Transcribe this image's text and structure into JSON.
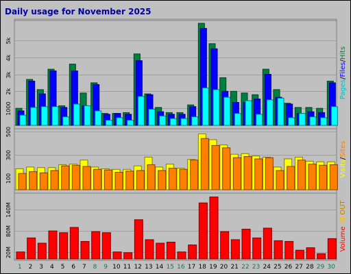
{
  "chart_data": {
    "type": "bar",
    "title": "Daily usage for November 2025",
    "categories": [
      "1",
      "2",
      "3",
      "4",
      "5",
      "6",
      "7",
      "8",
      "9",
      "10",
      "11",
      "12",
      "13",
      "14",
      "15",
      "16",
      "17",
      "18",
      "19",
      "20",
      "21",
      "22",
      "23",
      "24",
      "25",
      "26",
      "27",
      "28",
      "29",
      "30"
    ],
    "weekend_days": [
      "1",
      "8",
      "9",
      "15",
      "16",
      "22",
      "23",
      "29",
      "30"
    ],
    "colors": {
      "weekday_label": "#000000",
      "weekend_label": "#00805c",
      "pages": "#00ffff",
      "files": "#0000ff",
      "hits": "#008040",
      "visits": "#ffff00",
      "sites": "#ff8000",
      "kbytes": "#ff0000",
      "separator": "#000000"
    },
    "panels": [
      {
        "id": "hits-files-pages",
        "ylim": [
          0,
          6000
        ],
        "yticks": [
          "1000",
          "2k",
          "3k",
          "4k",
          "5k"
        ],
        "ytick_values": [
          1000,
          2000,
          3000,
          4000,
          5000
        ],
        "legend": [
          {
            "label": "Pages",
            "color": "#00c0c0"
          },
          {
            "label": "Files",
            "color": "#0000ff"
          },
          {
            "label": "Hits",
            "color": "#008040"
          }
        ],
        "series": [
          {
            "name": "Hits",
            "color": "#008040",
            "values": [
              1000,
              2700,
              2100,
              3300,
              1150,
              3600,
              1900,
              2500,
              700,
              700,
              750,
              4200,
              1850,
              1050,
              750,
              750,
              1200,
              6000,
              4800,
              2800,
              2000,
              1900,
              1800,
              3300,
              2100,
              1300,
              1050,
              1050,
              1000,
              2600
            ]
          },
          {
            "name": "Files",
            "color": "#0000ff",
            "values": [
              850,
              2600,
              1850,
              3200,
              1050,
              3200,
              1150,
              2400,
              650,
              700,
              650,
              3800,
              1800,
              800,
              650,
              650,
              1100,
              5700,
              4500,
              2000,
              1350,
              1350,
              1550,
              3000,
              1650,
              1250,
              700,
              800,
              750,
              2500
            ]
          },
          {
            "name": "Pages",
            "color": "#00ffff",
            "values": [
              600,
              1050,
              1100,
              1100,
              500,
              1250,
              1150,
              850,
              300,
              450,
              300,
              1700,
              950,
              550,
              400,
              400,
              500,
              2200,
              2100,
              1650,
              700,
              1450,
              650,
              1500,
              1600,
              450,
              700,
              500,
              450,
              1100
            ]
          }
        ]
      },
      {
        "id": "visits-sites",
        "ylim": [
          0,
          500
        ],
        "yticks": [
          "100",
          "300",
          "500"
        ],
        "ytick_values": [
          100,
          300,
          500
        ],
        "legend": [
          {
            "label": "Visits",
            "color": "#ffff00"
          },
          {
            "label": "Sites",
            "color": "#ff8000"
          }
        ],
        "series": [
          {
            "name": "Visits",
            "color": "#ffff00",
            "values": [
              180,
              195,
              190,
              190,
              215,
              220,
              255,
              195,
              180,
              175,
              175,
              205,
              280,
              195,
              220,
              185,
              260,
              480,
              430,
              385,
              305,
              310,
              290,
              280,
              195,
              265,
              280,
              245,
              240,
              240
            ]
          },
          {
            "name": "Sites",
            "color": "#ff8000",
            "values": [
              140,
              155,
              145,
              165,
              205,
              210,
              200,
              175,
              170,
              150,
              160,
              165,
              215,
              165,
              185,
              175,
              255,
              440,
              380,
              360,
              275,
              285,
              265,
              275,
              165,
              200,
              255,
              220,
              210,
              215
            ]
          }
        ]
      },
      {
        "id": "kbytes",
        "ylim": [
          0,
          180
        ],
        "yticks": [
          "20M",
          "80M",
          "140M"
        ],
        "ytick_values": [
          20,
          80,
          140
        ],
        "legend": [
          {
            "label": "Volume",
            "color": "#ff0000"
          },
          {
            "label": "IN",
            "color": "#ffc000"
          },
          {
            "label": "OUT",
            "color": "#c08000"
          }
        ],
        "series": [
          {
            "name": "Volume",
            "color": "#ff0000",
            "values": [
              20,
              60,
              45,
              80,
              75,
              90,
              50,
              78,
              75,
              20,
              18,
              112,
              55,
              45,
              48,
              20,
              40,
              160,
              177,
              78,
              55,
              85,
              60,
              88,
              52,
              50,
              25,
              32,
              15,
              58
            ]
          }
        ]
      }
    ]
  }
}
